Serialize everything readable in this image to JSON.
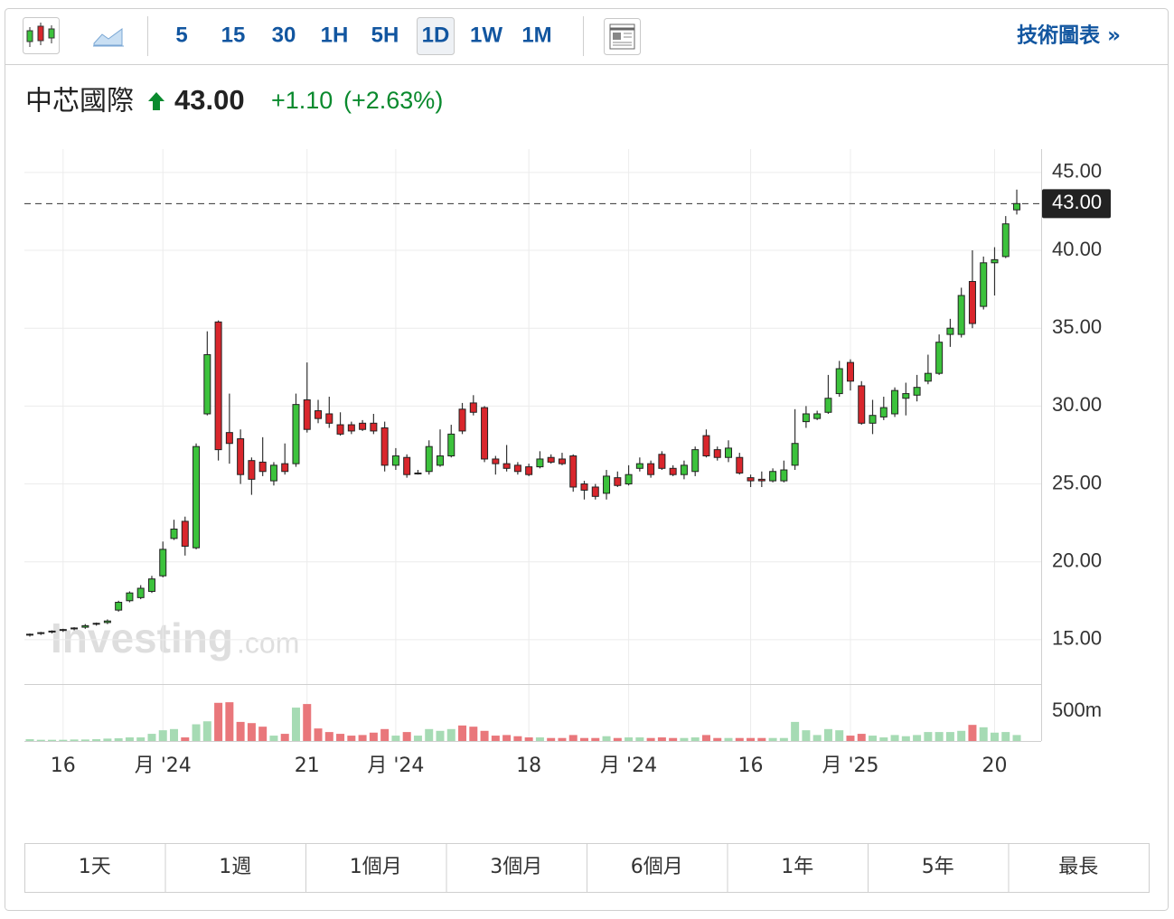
{
  "toolbar": {
    "intervals": [
      "5",
      "15",
      "30",
      "1H",
      "5H",
      "1D",
      "1W",
      "1M"
    ],
    "selected_interval_index": 5,
    "link": "技術圖表 »"
  },
  "header": {
    "title": "中芯國際",
    "price": "43.00",
    "change": "+1.10",
    "change_percent": "(+2.63%)"
  },
  "watermark": [
    "Investing",
    ".com"
  ],
  "chart_data": {
    "type": "candlestick",
    "categories": [
      null,
      null,
      null,
      "16",
      null,
      null,
      null,
      null,
      null,
      null,
      null,
      null,
      "月 '24",
      null,
      null,
      null,
      null,
      null,
      null,
      null,
      null,
      null,
      null,
      null,
      null,
      "21",
      null,
      null,
      null,
      null,
      null,
      null,
      null,
      "月 '24",
      null,
      null,
      null,
      null,
      null,
      null,
      null,
      null,
      null,
      null,
      null,
      "18",
      null,
      null,
      null,
      null,
      null,
      null,
      null,
      null,
      "月 '24",
      null,
      null,
      null,
      null,
      null,
      null,
      null,
      null,
      null,
      null,
      "16",
      null,
      null,
      null,
      null,
      null,
      null,
      null,
      null,
      "月 '25",
      null,
      null,
      null,
      null,
      null,
      null,
      null,
      null,
      null,
      null,
      null,
      null,
      "20",
      null,
      null
    ],
    "open": [
      15.3,
      15.4,
      15.5,
      15.6,
      15.7,
      15.8,
      16.0,
      16.1,
      16.9,
      17.5,
      17.7,
      18.1,
      19.1,
      21.5,
      22.6,
      20.9,
      29.5,
      35.4,
      28.3,
      27.9,
      26.5,
      26.4,
      25.2,
      26.3,
      26.3,
      30.4,
      29.7,
      29.5,
      28.8,
      28.8,
      28.9,
      28.9,
      28.6,
      26.2,
      26.7,
      25.7,
      25.8,
      26.2,
      26.8,
      29.8,
      30.2,
      29.9,
      26.6,
      26.3,
      26.2,
      26.1,
      26.1,
      26.7,
      26.6,
      26.8,
      25.0,
      24.8,
      24.4,
      25.4,
      25.0,
      26.0,
      26.3,
      26.9,
      26.0,
      25.6,
      25.8,
      28.1,
      27.2,
      26.7,
      26.7,
      25.4,
      25.3,
      25.2,
      25.2,
      26.2,
      29.0,
      29.2,
      29.6,
      30.8,
      32.8,
      31.3,
      28.9,
      29.3,
      29.5,
      30.5,
      30.7,
      31.6,
      32.1,
      34.6,
      34.6,
      38.0,
      36.4,
      39.2,
      39.6,
      42.6
    ],
    "high": [
      15.4,
      15.5,
      15.6,
      15.7,
      15.8,
      16.0,
      16.1,
      16.3,
      17.5,
      18.1,
      18.5,
      19.1,
      21.3,
      22.7,
      22.9,
      27.6,
      34.8,
      35.5,
      30.8,
      28.5,
      26.7,
      28.0,
      26.4,
      27.6,
      30.8,
      32.8,
      30.4,
      30.6,
      29.6,
      29.0,
      29.1,
      29.5,
      29.0,
      27.3,
      26.9,
      25.9,
      27.8,
      28.5,
      28.8,
      30.2,
      30.7,
      30.0,
      26.8,
      27.5,
      26.4,
      26.3,
      27.1,
      26.9,
      27.0,
      26.9,
      25.2,
      25.0,
      25.9,
      25.8,
      26.2,
      26.7,
      26.5,
      27.1,
      26.2,
      26.5,
      27.4,
      28.5,
      27.4,
      27.8,
      27.0,
      25.6,
      25.8,
      26.0,
      26.5,
      29.8,
      30.0,
      29.7,
      32.0,
      32.9,
      33.0,
      31.6,
      30.4,
      30.6,
      31.2,
      31.5,
      32.0,
      33.3,
      34.6,
      35.6,
      37.6,
      40.0,
      39.6,
      40.2,
      42.2,
      43.9
    ],
    "low": [
      15.2,
      15.3,
      15.4,
      15.5,
      15.6,
      15.7,
      15.9,
      16.0,
      16.8,
      17.4,
      17.6,
      18.0,
      19.0,
      21.4,
      20.4,
      20.8,
      29.4,
      26.5,
      26.3,
      25.0,
      24.3,
      25.5,
      24.9,
      25.6,
      26.1,
      28.3,
      28.9,
      28.6,
      28.1,
      28.2,
      28.4,
      28.2,
      25.8,
      25.9,
      25.4,
      25.6,
      25.6,
      26.1,
      26.7,
      28.2,
      29.4,
      26.4,
      25.6,
      25.8,
      25.6,
      25.5,
      26.0,
      26.3,
      26.2,
      24.5,
      24.0,
      24.0,
      24.0,
      24.8,
      24.9,
      25.8,
      25.4,
      25.9,
      25.5,
      25.3,
      25.5,
      26.7,
      26.5,
      26.4,
      25.6,
      24.8,
      24.8,
      25.1,
      25.1,
      25.9,
      28.6,
      29.1,
      29.5,
      30.6,
      31.0,
      28.8,
      28.2,
      29.1,
      29.3,
      29.4,
      30.3,
      31.4,
      32.0,
      33.8,
      34.4,
      35.0,
      36.2,
      37.1,
      39.5,
      42.3
    ],
    "close": [
      15.35,
      15.45,
      15.55,
      15.65,
      15.75,
      15.9,
      16.05,
      16.2,
      17.4,
      18.0,
      18.3,
      18.9,
      20.8,
      22.1,
      21.0,
      27.4,
      33.3,
      27.2,
      27.6,
      25.6,
      25.3,
      25.8,
      26.2,
      25.8,
      30.1,
      28.5,
      29.2,
      28.9,
      28.2,
      28.4,
      28.5,
      28.4,
      26.2,
      26.8,
      25.6,
      25.7,
      27.4,
      26.8,
      28.2,
      28.4,
      29.6,
      26.6,
      26.3,
      26.0,
      25.8,
      25.6,
      26.6,
      26.4,
      26.3,
      24.8,
      24.6,
      24.2,
      25.5,
      24.9,
      25.6,
      26.3,
      25.6,
      26.0,
      25.6,
      26.2,
      27.2,
      26.8,
      26.7,
      27.3,
      25.7,
      25.2,
      25.2,
      25.8,
      25.9,
      27.6,
      29.5,
      29.5,
      30.5,
      32.4,
      31.6,
      28.9,
      29.4,
      29.9,
      31.0,
      30.8,
      31.2,
      32.1,
      34.1,
      35.0,
      37.1,
      35.3,
      39.2,
      39.4,
      41.7,
      43.0
    ],
    "volume": [
      30,
      20,
      20,
      20,
      25,
      25,
      30,
      40,
      45,
      60,
      60,
      120,
      180,
      200,
      60,
      280,
      330,
      640,
      650,
      320,
      300,
      240,
      90,
      120,
      560,
      620,
      210,
      150,
      120,
      90,
      100,
      140,
      200,
      90,
      150,
      90,
      200,
      170,
      200,
      260,
      240,
      170,
      90,
      100,
      80,
      60,
      60,
      50,
      50,
      100,
      50,
      50,
      80,
      50,
      60,
      60,
      50,
      60,
      50,
      50,
      60,
      100,
      50,
      50,
      50,
      50,
      50,
      50,
      50,
      320,
      180,
      100,
      200,
      180,
      90,
      120,
      90,
      60,
      100,
      80,
      100,
      150,
      150,
      150,
      170,
      270,
      230,
      140,
      150,
      100
    ],
    "ylim": [
      12.15,
      46.5
    ],
    "yticks": [
      {
        "value": 15,
        "label": "15.00"
      },
      {
        "value": 20,
        "label": "20.00"
      },
      {
        "value": 25,
        "label": "25.00"
      },
      {
        "value": 30,
        "label": "30.00"
      },
      {
        "value": 35,
        "label": "35.00"
      },
      {
        "value": 40,
        "label": "40.00"
      },
      {
        "value": 45,
        "label": "45.00"
      }
    ],
    "last_price": {
      "value": 43,
      "label": "43.00"
    },
    "volume_ylim": [
      0,
      955
    ],
    "volume_ticks": [
      {
        "value": 500,
        "label": "500m"
      }
    ],
    "up_color": "#3cc23c",
    "down_color": "#d9262c",
    "volume_up_color": "#a6dbb4",
    "volume_down_color": "#e9777b",
    "grid": true
  },
  "range_buttons": [
    "1天",
    "1週",
    "1個月",
    "3個月",
    "6個月",
    "1年",
    "5年",
    "最長"
  ]
}
